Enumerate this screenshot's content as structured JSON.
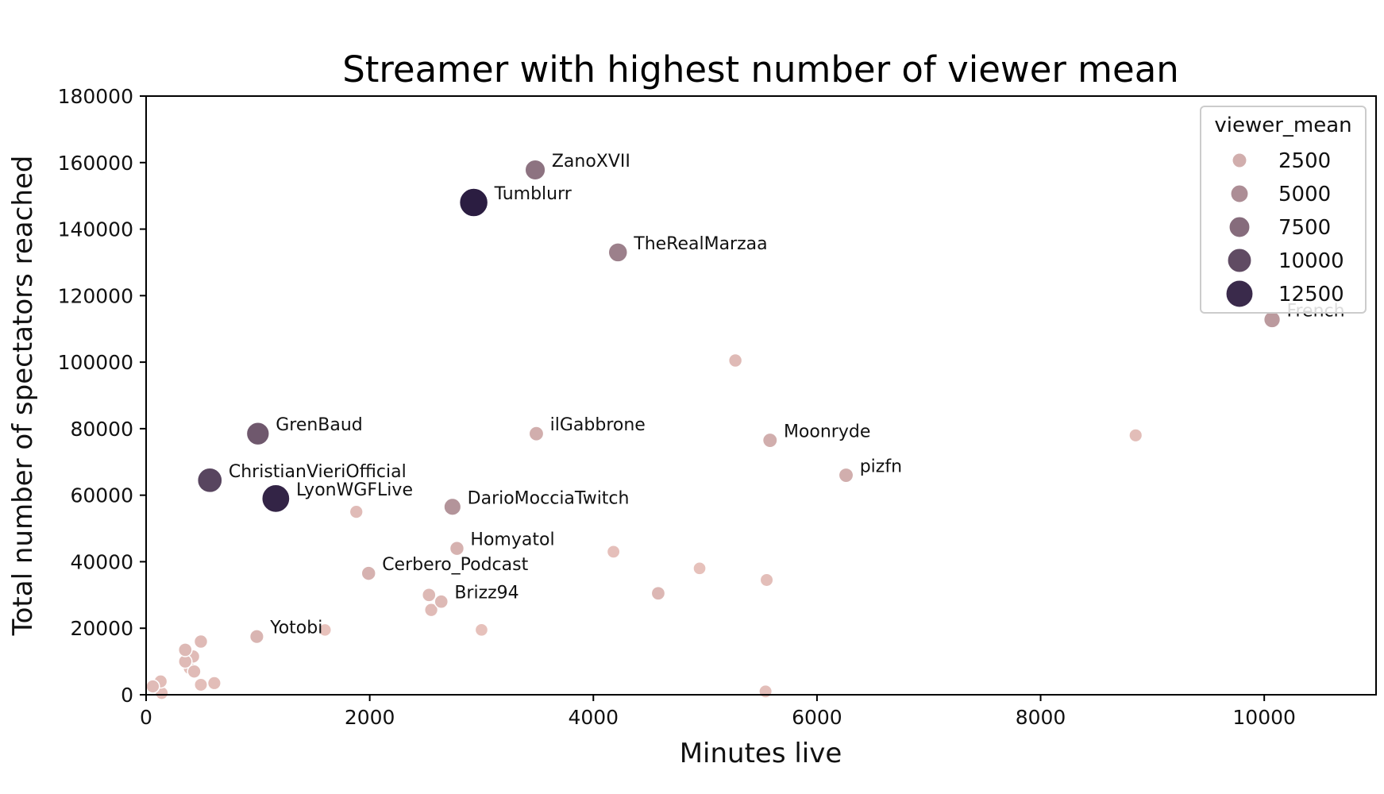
{
  "chart_data": {
    "type": "scatter",
    "title": "Streamer with highest number of viewer mean",
    "xlabel": "Minutes live",
    "ylabel": "Total number of spectators reached",
    "xlim": [
      0,
      11000
    ],
    "ylim": [
      0,
      180000
    ],
    "xticks": [
      0,
      2000,
      4000,
      6000,
      8000,
      10000
    ],
    "yticks": [
      0,
      20000,
      40000,
      60000,
      80000,
      100000,
      120000,
      140000,
      160000,
      180000
    ],
    "xtick_labels": [
      "0",
      "2000",
      "4000",
      "6000",
      "8000",
      "10000"
    ],
    "ytick_labels": [
      "0",
      "20000",
      "40000",
      "60000",
      "80000",
      "100000",
      "120000",
      "140000",
      "160000",
      "180000"
    ],
    "grid": false,
    "legend": {
      "title": "viewer_mean",
      "placement": "top-right",
      "entries": [
        {
          "label": "2500",
          "value": 2500
        },
        {
          "label": "5000",
          "value": 5000
        },
        {
          "label": "7500",
          "value": 7500
        },
        {
          "label": "10000",
          "value": 10000
        },
        {
          "label": "12500",
          "value": 12500
        }
      ]
    },
    "color_low": "#e8c2bc",
    "color_high": "#2b1d41",
    "points": [
      {
        "x": 3480,
        "y": 157800,
        "viewer_mean": 7000,
        "label": "ZanoXVII"
      },
      {
        "x": 2930,
        "y": 148000,
        "viewer_mean": 13500,
        "label": "Tumblurr"
      },
      {
        "x": 4220,
        "y": 133000,
        "viewer_mean": 6000,
        "label": "TheRealMarzaa"
      },
      {
        "x": 10070,
        "y": 112800,
        "viewer_mean": 4000,
        "label": "French"
      },
      {
        "x": 5270,
        "y": 100500,
        "viewer_mean": 1600,
        "label": ""
      },
      {
        "x": 1000,
        "y": 78500,
        "viewer_mean": 9000,
        "label": "GrenBaud"
      },
      {
        "x": 3490,
        "y": 78500,
        "viewer_mean": 2500,
        "label": "ilGabbrone"
      },
      {
        "x": 5580,
        "y": 76500,
        "viewer_mean": 2500,
        "label": "Moonryde"
      },
      {
        "x": 8850,
        "y": 78000,
        "viewer_mean": 1400,
        "label": ""
      },
      {
        "x": 6260,
        "y": 66000,
        "viewer_mean": 2500,
        "label": "pizfn"
      },
      {
        "x": 570,
        "y": 64500,
        "viewer_mean": 10500,
        "label": "ChristianVieriOfficial"
      },
      {
        "x": 1160,
        "y": 59000,
        "viewer_mean": 13000,
        "label": "LyonWGFLive"
      },
      {
        "x": 2740,
        "y": 56500,
        "viewer_mean": 4500,
        "label": "DarioMocciaTwitch"
      },
      {
        "x": 1880,
        "y": 55000,
        "viewer_mean": 1500,
        "label": ""
      },
      {
        "x": 2780,
        "y": 44000,
        "viewer_mean": 2200,
        "label": "Homyatol"
      },
      {
        "x": 4180,
        "y": 43000,
        "viewer_mean": 1200,
        "label": ""
      },
      {
        "x": 4950,
        "y": 38000,
        "viewer_mean": 1100,
        "label": ""
      },
      {
        "x": 1990,
        "y": 36500,
        "viewer_mean": 2200,
        "label": "Cerbero_Podcast"
      },
      {
        "x": 5550,
        "y": 34500,
        "viewer_mean": 1300,
        "label": ""
      },
      {
        "x": 4580,
        "y": 30500,
        "viewer_mean": 1800,
        "label": ""
      },
      {
        "x": 2530,
        "y": 30000,
        "viewer_mean": 1700,
        "label": ""
      },
      {
        "x": 2640,
        "y": 28000,
        "viewer_mean": 1700,
        "label": "Brizz94"
      },
      {
        "x": 2550,
        "y": 25500,
        "viewer_mean": 1500,
        "label": ""
      },
      {
        "x": 3000,
        "y": 19500,
        "viewer_mean": 1100,
        "label": ""
      },
      {
        "x": 1600,
        "y": 19500,
        "viewer_mean": 1000,
        "label": ""
      },
      {
        "x": 990,
        "y": 17500,
        "viewer_mean": 2000,
        "label": "Yotobi"
      },
      {
        "x": 490,
        "y": 16000,
        "viewer_mean": 1600,
        "label": ""
      },
      {
        "x": 350,
        "y": 13500,
        "viewer_mean": 1700,
        "label": ""
      },
      {
        "x": 420,
        "y": 11500,
        "viewer_mean": 1500,
        "label": ""
      },
      {
        "x": 350,
        "y": 10000,
        "viewer_mean": 1600,
        "label": ""
      },
      {
        "x": 390,
        "y": 8000,
        "viewer_mean": 1300,
        "label": ""
      },
      {
        "x": 430,
        "y": 7000,
        "viewer_mean": 1500,
        "label": ""
      },
      {
        "x": 130,
        "y": 4000,
        "viewer_mean": 1400,
        "label": ""
      },
      {
        "x": 610,
        "y": 3500,
        "viewer_mean": 1400,
        "label": ""
      },
      {
        "x": 490,
        "y": 3000,
        "viewer_mean": 1300,
        "label": ""
      },
      {
        "x": 60,
        "y": 2500,
        "viewer_mean": 1500,
        "label": ""
      },
      {
        "x": 140,
        "y": 500,
        "viewer_mean": 1200,
        "label": ""
      },
      {
        "x": 5540,
        "y": 1000,
        "viewer_mean": 1300,
        "label": ""
      }
    ]
  }
}
